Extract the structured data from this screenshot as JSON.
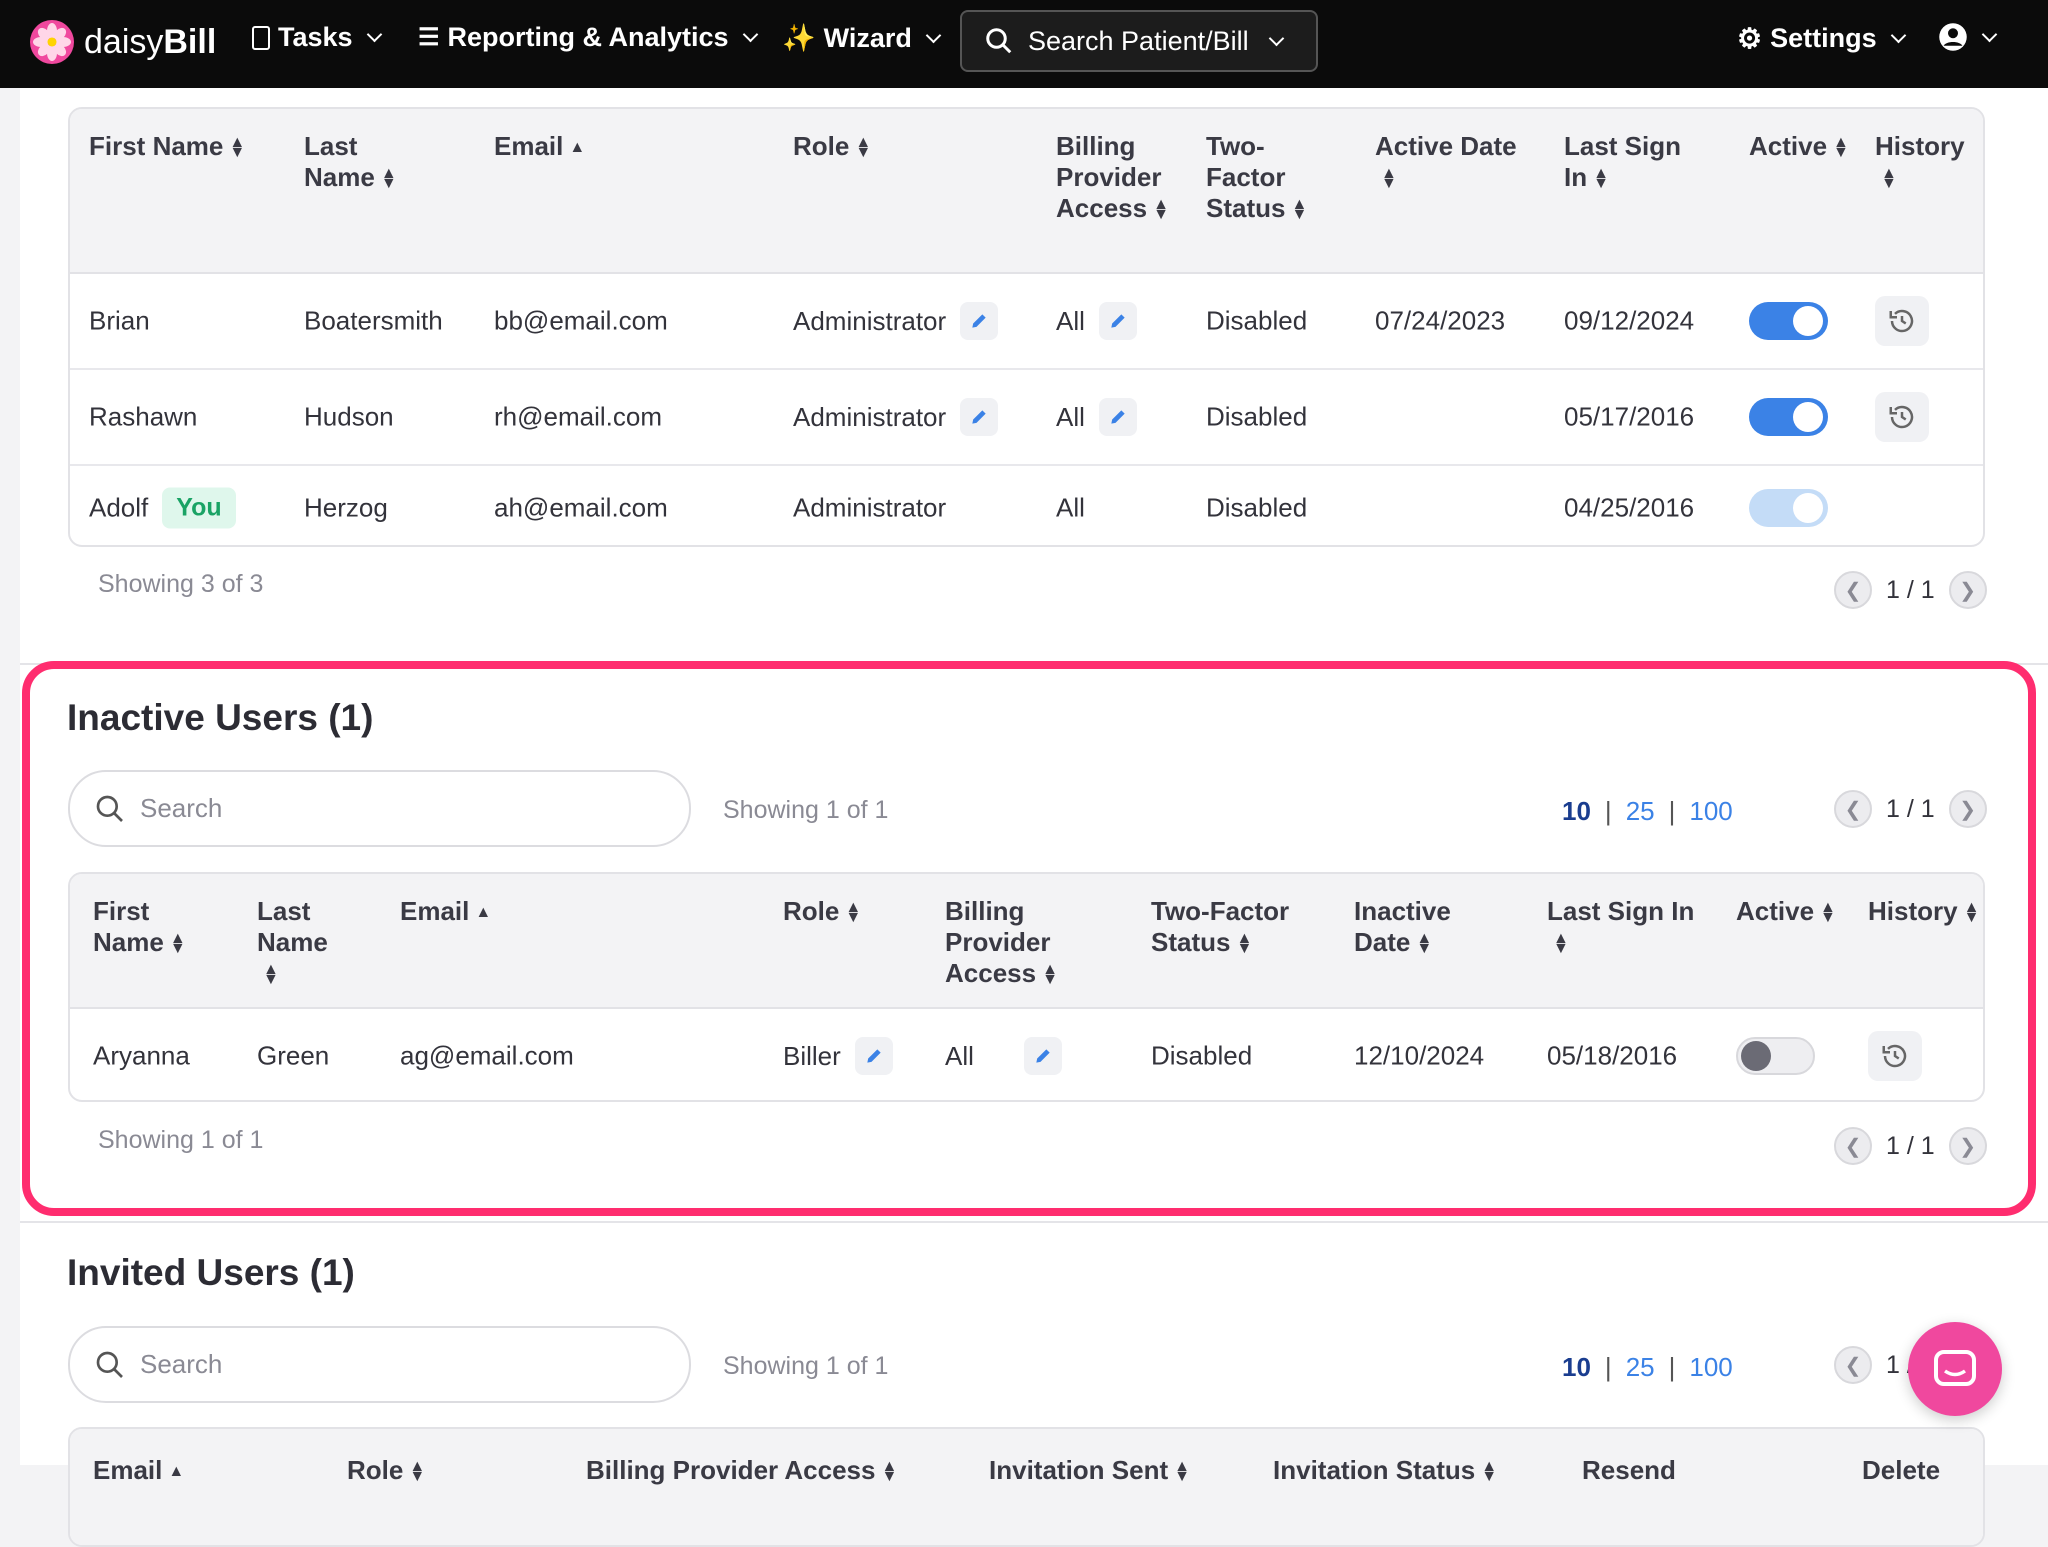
{
  "nav": {
    "brand_light": "daisy",
    "brand_bold": "Bill",
    "tasks": "Tasks",
    "reporting": "Reporting & Analytics",
    "wizard": "Wizard",
    "search": "Search Patient/Bill",
    "settings": "Settings"
  },
  "colors": {
    "accent": "#3b82e6",
    "highlight": "#ff2d6f",
    "chat": "#f0489e",
    "you_badge": "#1aa365"
  },
  "active_table": {
    "headers": [
      {
        "label": "First Name",
        "sort": "both"
      },
      {
        "label": "Last Name",
        "sort": "both"
      },
      {
        "label": "Email",
        "sort": "asc"
      },
      {
        "label": "Role",
        "sort": "both"
      },
      {
        "label": "Billing Provider Access",
        "sort": "both"
      },
      {
        "label": "Two-Factor Status",
        "sort": "both"
      },
      {
        "label": "Active Date",
        "sort": "both"
      },
      {
        "label": "Last Sign In",
        "sort": "both"
      },
      {
        "label": "Active",
        "sort": "both"
      },
      {
        "label": "History",
        "sort": "both"
      }
    ],
    "rows": [
      {
        "first": "Brian",
        "last": "Boatersmith",
        "email": "bb@email.com",
        "role": "Administrator",
        "billing": "All",
        "two_factor": "Disabled",
        "active_date": "07/24/2023",
        "last_sign_in": "09/12/2024",
        "active": true,
        "editable": true,
        "history": true
      },
      {
        "first": "Rashawn",
        "last": "Hudson",
        "email": "rh@email.com",
        "role": "Administrator",
        "billing": "All",
        "two_factor": "Disabled",
        "active_date": "",
        "last_sign_in": "05/17/2016",
        "active": true,
        "editable": true,
        "history": true
      },
      {
        "first": "Adolf",
        "badge": "You",
        "last": "Herzog",
        "email": "ah@email.com",
        "role": "Administrator",
        "billing": "All",
        "two_factor": "Disabled",
        "active_date": "",
        "last_sign_in": "04/25/2016",
        "active": true,
        "disabled": true,
        "editable": false,
        "history": false
      }
    ],
    "showing": "Showing 3 of 3",
    "page": "1 / 1"
  },
  "inactive": {
    "title": "Inactive Users (1)",
    "search_placeholder": "Search",
    "showing_top": "Showing 1 of 1",
    "sizes": [
      "10",
      "25",
      "100"
    ],
    "selected_size": "10",
    "page": "1 / 1",
    "headers": [
      {
        "label": "First Name",
        "sort": "both"
      },
      {
        "label": "Last Name",
        "sort": "both"
      },
      {
        "label": "Email",
        "sort": "asc"
      },
      {
        "label": "Role",
        "sort": "both"
      },
      {
        "label": "Billing Provider Access",
        "sort": "both"
      },
      {
        "label": "Two-Factor Status",
        "sort": "both"
      },
      {
        "label": "Inactive Date",
        "sort": "both"
      },
      {
        "label": "Last Sign In",
        "sort": "both"
      },
      {
        "label": "Active",
        "sort": "both"
      },
      {
        "label": "History",
        "sort": "both"
      }
    ],
    "rows": [
      {
        "first": "Aryanna",
        "last": "Green",
        "email": "ag@email.com",
        "role": "Biller",
        "billing": "All",
        "two_factor": "Disabled",
        "active_date": "12/10/2024",
        "last_sign_in": "05/18/2016",
        "active": false,
        "editable": true,
        "history": true
      }
    ],
    "showing": "Showing 1 of 1",
    "page_bottom": "1 / 1"
  },
  "invited": {
    "title": "Invited Users (1)",
    "search_placeholder": "Search",
    "showing_top": "Showing 1 of 1",
    "sizes": [
      "10",
      "25",
      "100"
    ],
    "selected_size": "10",
    "page": "1 / 1",
    "headers": [
      {
        "label": "Email",
        "sort": "asc"
      },
      {
        "label": "Role",
        "sort": "both"
      },
      {
        "label": "Billing Provider Access",
        "sort": "both"
      },
      {
        "label": "Invitation Sent",
        "sort": "both"
      },
      {
        "label": "Invitation Status",
        "sort": "both"
      },
      {
        "label": "Resend",
        "sort": ""
      },
      {
        "label": "Delete",
        "sort": ""
      }
    ]
  }
}
